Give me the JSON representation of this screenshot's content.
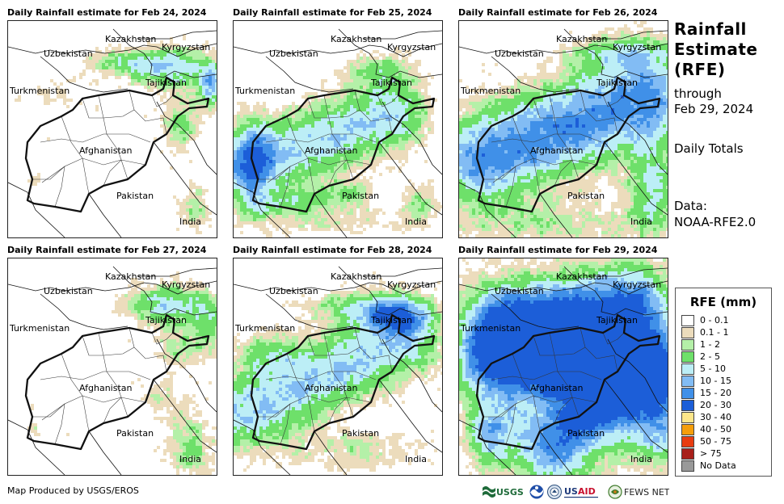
{
  "panels": [
    {
      "title": "Daily Rainfall estimate for Feb 24, 2024",
      "day": 0
    },
    {
      "title": "Daily Rainfall estimate for Feb 25, 2024",
      "day": 1
    },
    {
      "title": "Daily Rainfall estimate for Feb 26, 2024",
      "day": 2
    },
    {
      "title": "Daily Rainfall estimate for Feb 27, 2024",
      "day": 3
    },
    {
      "title": "Daily Rainfall estimate for Feb 28, 2024",
      "day": 4
    },
    {
      "title": "Daily Rainfall estimate for Feb 29, 2024",
      "day": 5
    }
  ],
  "map_labels": {
    "kazakhstan": "Kazakhstan",
    "kyrgyzstan": "Kyrgyzstan",
    "uzbekistan": "Uzbekistan",
    "tajikistan": "Tajikistan",
    "turkmenistan": "Turkmenistan",
    "afghanistan": "Afghanistan",
    "pakistan": "Pakistan",
    "india": "India"
  },
  "side": {
    "title": "Rainfall Estimate (RFE)",
    "through_line1": "through",
    "through_line2": "Feb 29, 2024",
    "totals": "Daily Totals",
    "data_line1": "Data:",
    "data_line2": "NOAA-RFE2.0"
  },
  "legend": {
    "title": "RFE (mm)",
    "items": [
      {
        "label": "0 - 0.1",
        "color": "#ffffff"
      },
      {
        "label": "0.1 - 1",
        "color": "#ecdcbc"
      },
      {
        "label": "1 - 2",
        "color": "#b4f0a8"
      },
      {
        "label": "2 - 5",
        "color": "#6ee06a"
      },
      {
        "label": "5 - 10",
        "color": "#bceef6"
      },
      {
        "label": "10 - 15",
        "color": "#82bcf4"
      },
      {
        "label": "15 - 20",
        "color": "#4090e8"
      },
      {
        "label": "20 - 30",
        "color": "#1c5ed8"
      },
      {
        "label": "30 - 40",
        "color": "#fde68a"
      },
      {
        "label": "40 - 50",
        "color": "#f59e0b"
      },
      {
        "label": "50 - 75",
        "color": "#e83c10"
      },
      {
        "label": "> 75",
        "color": "#a8201a"
      },
      {
        "label": "No Data",
        "color": "#999999"
      }
    ]
  },
  "footer": {
    "credit": "Map Produced by USGS/EROS",
    "logos": [
      "usgs-logo",
      "noaa-logo",
      "doi-seal",
      "usaid-logo",
      "fews-net-logo"
    ]
  }
}
